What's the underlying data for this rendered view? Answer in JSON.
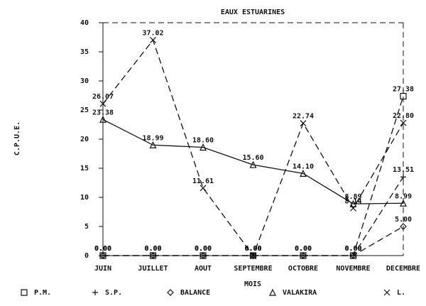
{
  "chart_data": {
    "type": "line",
    "title": "EAUX ESTUARINES",
    "x_label": "MOIS",
    "y_label": "C.P.U.E.",
    "categories": [
      "JUIN",
      "JUILLET",
      "AOUT",
      "SEPTEMBRE",
      "OCTOBRE",
      "NOVEMBRE",
      "DECEMBRE"
    ],
    "ylim": [
      0,
      40
    ],
    "yticks": [
      0,
      5,
      10,
      15,
      20,
      25,
      30,
      35,
      40
    ],
    "series": [
      {
        "name": "P.M.",
        "color": "#111111",
        "marker": "square",
        "line_style": "dashed",
        "values": [
          0,
          0,
          0,
          0,
          0,
          0,
          27.38
        ],
        "value_labels": [
          "0.00",
          "0.00",
          "0.00",
          "0.00",
          "0.00",
          "0.00",
          "27.38"
        ]
      },
      {
        "name": "S.P.",
        "color": "#111111",
        "marker": "plus",
        "line_style": "dashed",
        "values": [
          0,
          0,
          0,
          0,
          0,
          0,
          13.51
        ],
        "value_labels": [
          "0.00",
          "0.00",
          "0.00",
          "0.00",
          "0.00",
          "0.00",
          "13.51"
        ]
      },
      {
        "name": "BALANCE",
        "color": "#111111",
        "marker": "diamond",
        "line_style": "dashed",
        "values": [
          0,
          0,
          0,
          0,
          0,
          0,
          5.0
        ],
        "value_labels": [
          "0.00",
          "0.00",
          "0.00",
          "0.00",
          "0.00",
          "0.00",
          "5.00"
        ]
      },
      {
        "name": "VALAKIRA",
        "color": "#111111",
        "marker": "triangle",
        "line_style": "solid",
        "values": [
          23.38,
          18.99,
          18.6,
          15.6,
          14.1,
          8.89,
          8.99
        ],
        "value_labels": [
          "23.38",
          "18.99",
          "18.60",
          "15.60",
          "14.10",
          "8.89",
          "8.99"
        ]
      },
      {
        "name": "L.",
        "color": "#111111",
        "marker": "cross",
        "line_style": "dashed",
        "values": [
          26.07,
          37.02,
          11.61,
          0,
          22.74,
          8.14,
          22.8
        ],
        "value_labels": [
          "26.07",
          "37.02",
          "11.61",
          "0.00",
          "22.74",
          "8.14",
          "22.80"
        ]
      }
    ]
  }
}
